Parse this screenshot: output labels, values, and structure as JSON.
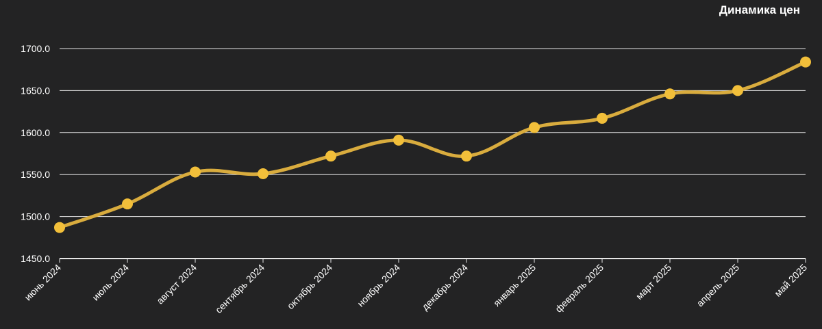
{
  "chart_data": {
    "type": "line",
    "title": "Динамика цен",
    "xlabel": "",
    "ylabel": "",
    "categories": [
      "июнь 2024",
      "июль 2024",
      "август 2024",
      "сентябрь 2024",
      "октябрь 2024",
      "ноябрь 2024",
      "декабрь 2024",
      "январь 2025",
      "февраль 2025",
      "март 2025",
      "апрель 2025",
      "май 2025"
    ],
    "series": [
      {
        "values": [
          1487,
          1515,
          1553,
          1551,
          1572,
          1591,
          1572,
          1606,
          1617,
          1646,
          1650,
          1684
        ]
      }
    ],
    "ylim": [
      1450,
      1700
    ],
    "yticks": [
      "1450.0",
      "1500.0",
      "1550.0",
      "1600.0",
      "1650.0",
      "1700.0"
    ],
    "ytick_values": [
      1450,
      1500,
      1550,
      1600,
      1650,
      1700
    ],
    "grid": true,
    "legend": "none",
    "colors": {
      "background": "#232324",
      "line": "#d9ac3e",
      "marker": "#f2bf3a",
      "grid": "#e6e6e6",
      "text": "#ffffff"
    }
  }
}
